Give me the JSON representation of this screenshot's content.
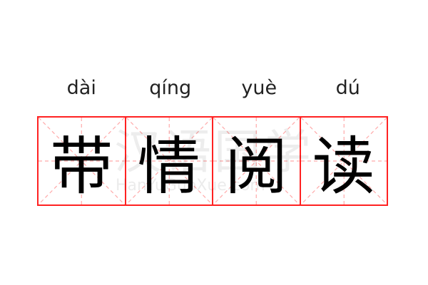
{
  "pinyin": [
    "dài",
    "qíng",
    "yuè",
    "dú"
  ],
  "characters": [
    "带",
    "情",
    "阅",
    "读"
  ],
  "watermark": {
    "chinese": "汉语国学",
    "latin": "HanYuGuoXue.com"
  },
  "colors": {
    "grid_border": "#ff2222",
    "guide_lines": "#ffaaaa",
    "text": "#000000"
  }
}
